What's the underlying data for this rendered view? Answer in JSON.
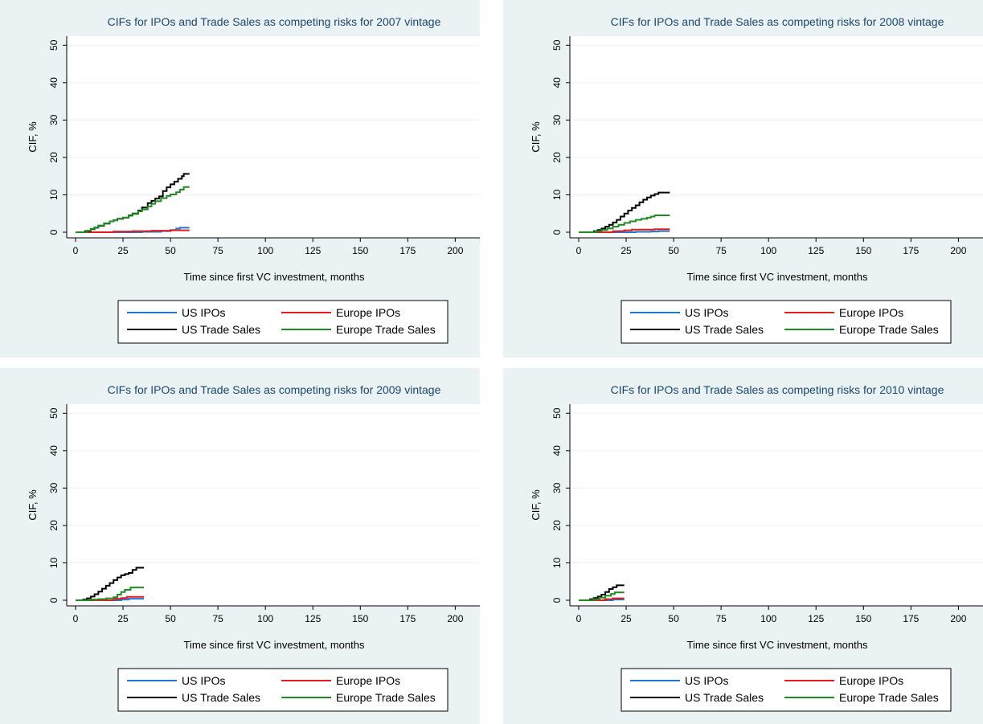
{
  "chart_data": [
    {
      "type": "line",
      "title": "CIFs for IPOs and Trade Sales as competing risks for 2007 vintage",
      "xlabel": "Time since first VC investment, months",
      "ylabel": "CIF, %",
      "xlim": [
        0,
        210
      ],
      "ylim": [
        0,
        52
      ],
      "xticks": [
        0,
        25,
        50,
        75,
        100,
        125,
        150,
        175,
        200
      ],
      "yticks": [
        0,
        10,
        20,
        30,
        40,
        50
      ],
      "grid": "horizontal",
      "legend_position": "bottom",
      "series": [
        {
          "name": "US IPOs",
          "color": "#1f77d4",
          "step": true,
          "points": [
            [
              0,
              0
            ],
            [
              20,
              0
            ],
            [
              35,
              0.1
            ],
            [
              45,
              0.3
            ],
            [
              50,
              0.6
            ],
            [
              53,
              1.0
            ],
            [
              55,
              1.2
            ],
            [
              60,
              1.2
            ]
          ]
        },
        {
          "name": "Europe IPOs",
          "color": "#e41a1c",
          "step": true,
          "points": [
            [
              0,
              0
            ],
            [
              10,
              0
            ],
            [
              20,
              0.2
            ],
            [
              30,
              0.3
            ],
            [
              40,
              0.4
            ],
            [
              50,
              0.5
            ],
            [
              60,
              0.5
            ]
          ]
        },
        {
          "name": "US Trade Sales",
          "color": "#000000",
          "step": true,
          "points": [
            [
              0,
              0
            ],
            [
              3,
              0
            ],
            [
              5,
              0.3
            ],
            [
              8,
              0.8
            ],
            [
              10,
              1.2
            ],
            [
              12,
              1.7
            ],
            [
              15,
              2.3
            ],
            [
              18,
              2.9
            ],
            [
              20,
              3.2
            ],
            [
              22,
              3.6
            ],
            [
              25,
              3.9
            ],
            [
              28,
              4.5
            ],
            [
              30,
              5.0
            ],
            [
              33,
              5.8
            ],
            [
              35,
              6.6
            ],
            [
              38,
              7.8
            ],
            [
              40,
              8.4
            ],
            [
              42,
              9.0
            ],
            [
              44,
              9.6
            ],
            [
              46,
              11.0
            ],
            [
              48,
              12.0
            ],
            [
              50,
              12.8
            ],
            [
              52,
              13.5
            ],
            [
              54,
              14.3
            ],
            [
              56,
              15.0
            ],
            [
              57,
              15.6
            ],
            [
              60,
              15.6
            ]
          ]
        },
        {
          "name": "Europe Trade Sales",
          "color": "#1e8c1e",
          "step": true,
          "points": [
            [
              0,
              0
            ],
            [
              4,
              0
            ],
            [
              6,
              0.4
            ],
            [
              8,
              0.9
            ],
            [
              10,
              1.3
            ],
            [
              12,
              1.8
            ],
            [
              15,
              2.4
            ],
            [
              18,
              2.9
            ],
            [
              20,
              3.2
            ],
            [
              22,
              3.6
            ],
            [
              25,
              3.9
            ],
            [
              28,
              4.4
            ],
            [
              30,
              4.9
            ],
            [
              33,
              5.6
            ],
            [
              35,
              6.1
            ],
            [
              38,
              6.9
            ],
            [
              40,
              7.6
            ],
            [
              42,
              8.3
            ],
            [
              45,
              9.1
            ],
            [
              48,
              9.7
            ],
            [
              50,
              10.1
            ],
            [
              53,
              10.7
            ],
            [
              55,
              11.4
            ],
            [
              57,
              12.1
            ],
            [
              60,
              12.1
            ]
          ]
        }
      ]
    },
    {
      "type": "line",
      "title": "CIFs for IPOs and Trade Sales as competing risks for 2008 vintage",
      "xlabel": "Time since first VC investment, months",
      "ylabel": "CIF, %",
      "xlim": [
        0,
        210
      ],
      "ylim": [
        0,
        52
      ],
      "xticks": [
        0,
        25,
        50,
        75,
        100,
        125,
        150,
        175,
        200
      ],
      "yticks": [
        0,
        10,
        20,
        30,
        40,
        50
      ],
      "grid": "horizontal",
      "legend_position": "bottom",
      "series": [
        {
          "name": "US IPOs",
          "color": "#1f77d4",
          "step": true,
          "points": [
            [
              0,
              0
            ],
            [
              20,
              0
            ],
            [
              30,
              0.1
            ],
            [
              38,
              0.2
            ],
            [
              42,
              0.3
            ],
            [
              48,
              0.3
            ]
          ]
        },
        {
          "name": "Europe IPOs",
          "color": "#e41a1c",
          "step": true,
          "points": [
            [
              0,
              0
            ],
            [
              12,
              0
            ],
            [
              18,
              0.3
            ],
            [
              24,
              0.5
            ],
            [
              28,
              0.7
            ],
            [
              40,
              0.8
            ],
            [
              48,
              0.8
            ]
          ]
        },
        {
          "name": "US Trade Sales",
          "color": "#000000",
          "step": true,
          "points": [
            [
              0,
              0
            ],
            [
              5,
              0
            ],
            [
              8,
              0.3
            ],
            [
              10,
              0.6
            ],
            [
              12,
              1.0
            ],
            [
              14,
              1.5
            ],
            [
              16,
              2.0
            ],
            [
              18,
              2.6
            ],
            [
              20,
              3.3
            ],
            [
              22,
              4.2
            ],
            [
              24,
              5.0
            ],
            [
              26,
              5.8
            ],
            [
              28,
              6.5
            ],
            [
              30,
              7.2
            ],
            [
              32,
              8.0
            ],
            [
              34,
              8.7
            ],
            [
              36,
              9.3
            ],
            [
              38,
              9.8
            ],
            [
              40,
              10.2
            ],
            [
              42,
              10.6
            ],
            [
              48,
              10.6
            ]
          ]
        },
        {
          "name": "Europe Trade Sales",
          "color": "#1e8c1e",
          "step": true,
          "points": [
            [
              0,
              0
            ],
            [
              6,
              0
            ],
            [
              9,
              0.3
            ],
            [
              12,
              0.6
            ],
            [
              15,
              1.0
            ],
            [
              18,
              1.5
            ],
            [
              21,
              2.0
            ],
            [
              24,
              2.5
            ],
            [
              27,
              2.9
            ],
            [
              30,
              3.3
            ],
            [
              33,
              3.6
            ],
            [
              36,
              3.9
            ],
            [
              38,
              4.2
            ],
            [
              40,
              4.5
            ],
            [
              48,
              4.5
            ]
          ]
        }
      ]
    },
    {
      "type": "line",
      "title": "CIFs for IPOs and Trade Sales as competing risks for 2009 vintage",
      "xlabel": "Time since first VC investment, months",
      "ylabel": "CIF, %",
      "xlim": [
        0,
        210
      ],
      "ylim": [
        0,
        52
      ],
      "xticks": [
        0,
        25,
        50,
        75,
        100,
        125,
        150,
        175,
        200
      ],
      "yticks": [
        0,
        10,
        20,
        30,
        40,
        50
      ],
      "grid": "horizontal",
      "legend_position": "bottom",
      "series": [
        {
          "name": "US IPOs",
          "color": "#1f77d4",
          "step": true,
          "points": [
            [
              0,
              0
            ],
            [
              20,
              0
            ],
            [
              24,
              0.2
            ],
            [
              28,
              0.4
            ],
            [
              36,
              0.4
            ]
          ]
        },
        {
          "name": "Europe IPOs",
          "color": "#e41a1c",
          "step": true,
          "points": [
            [
              0,
              0
            ],
            [
              18,
              0
            ],
            [
              20,
              0.4
            ],
            [
              24,
              0.6
            ],
            [
              27,
              0.9
            ],
            [
              36,
              0.9
            ]
          ]
        },
        {
          "name": "US Trade Sales",
          "color": "#000000",
          "step": true,
          "points": [
            [
              0,
              0
            ],
            [
              2,
              0
            ],
            [
              4,
              0.2
            ],
            [
              6,
              0.5
            ],
            [
              8,
              1.0
            ],
            [
              10,
              1.6
            ],
            [
              12,
              2.3
            ],
            [
              14,
              3.1
            ],
            [
              16,
              3.9
            ],
            [
              18,
              4.6
            ],
            [
              20,
              5.4
            ],
            [
              22,
              6.1
            ],
            [
              24,
              6.7
            ],
            [
              26,
              7.0
            ],
            [
              28,
              7.3
            ],
            [
              30,
              8.1
            ],
            [
              32,
              8.7
            ],
            [
              36,
              8.7
            ]
          ]
        },
        {
          "name": "Europe Trade Sales",
          "color": "#1e8c1e",
          "step": true,
          "points": [
            [
              0,
              0
            ],
            [
              4,
              0
            ],
            [
              8,
              0.2
            ],
            [
              12,
              0.3
            ],
            [
              16,
              0.5
            ],
            [
              20,
              0.8
            ],
            [
              22,
              1.5
            ],
            [
              24,
              2.2
            ],
            [
              26,
              2.8
            ],
            [
              29,
              3.4
            ],
            [
              36,
              3.4
            ]
          ]
        }
      ]
    },
    {
      "type": "line",
      "title": "CIFs for IPOs and Trade Sales as competing risks for 2010 vintage",
      "xlabel": "Time since first VC investment, months",
      "ylabel": "CIF, %",
      "xlim": [
        0,
        210
      ],
      "ylim": [
        0,
        52
      ],
      "xticks": [
        0,
        25,
        50,
        75,
        100,
        125,
        150,
        175,
        200
      ],
      "yticks": [
        0,
        10,
        20,
        30,
        40,
        50
      ],
      "grid": "horizontal",
      "legend_position": "bottom",
      "series": [
        {
          "name": "US IPOs",
          "color": "#1f77d4",
          "step": true,
          "points": [
            [
              0,
              0
            ],
            [
              14,
              0
            ],
            [
              18,
              0.2
            ],
            [
              24,
              0.2
            ]
          ]
        },
        {
          "name": "Europe IPOs",
          "color": "#e41a1c",
          "step": true,
          "points": [
            [
              0,
              0
            ],
            [
              10,
              0
            ],
            [
              14,
              0.3
            ],
            [
              18,
              0.5
            ],
            [
              24,
              0.5
            ]
          ]
        },
        {
          "name": "US Trade Sales",
          "color": "#000000",
          "step": true,
          "points": [
            [
              0,
              0
            ],
            [
              4,
              0
            ],
            [
              6,
              0.3
            ],
            [
              8,
              0.6
            ],
            [
              10,
              1.0
            ],
            [
              12,
              1.5
            ],
            [
              14,
              2.2
            ],
            [
              16,
              3.0
            ],
            [
              18,
              3.5
            ],
            [
              20,
              4.0
            ],
            [
              24,
              4.0
            ]
          ]
        },
        {
          "name": "Europe Trade Sales",
          "color": "#1e8c1e",
          "step": true,
          "points": [
            [
              0,
              0
            ],
            [
              5,
              0
            ],
            [
              8,
              0.3
            ],
            [
              11,
              0.7
            ],
            [
              14,
              1.2
            ],
            [
              17,
              1.7
            ],
            [
              19,
              2.1
            ],
            [
              24,
              2.1
            ]
          ]
        }
      ]
    }
  ]
}
